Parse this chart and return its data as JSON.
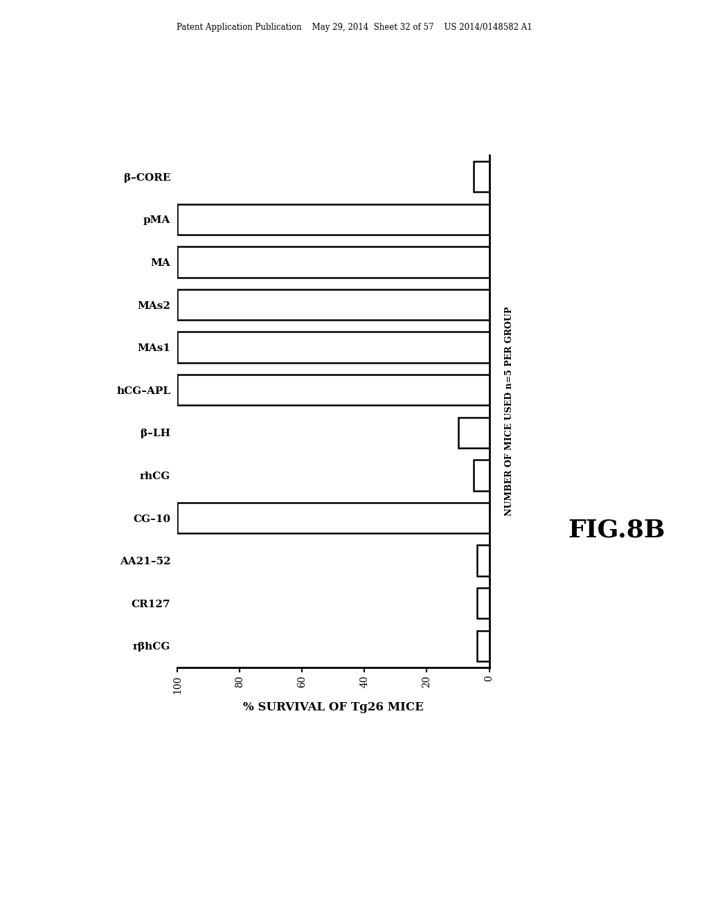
{
  "categories_top_to_bottom": [
    "β–CORE",
    "pMA",
    "MA",
    "MAs2",
    "MAs1",
    "hCG–APL",
    "β–LH",
    "rhCG",
    "CG–10",
    "AA21–52",
    "CR127",
    "rβhCG"
  ],
  "values_top_to_bottom": [
    5,
    100,
    100,
    100,
    100,
    100,
    10,
    5,
    100,
    4,
    4,
    4
  ],
  "bar_color": "#ffffff",
  "bar_edge_color": "#000000",
  "bar_linewidth": 1.8,
  "xlabel": "% SURVIVAL OF Tg26 MICE",
  "ylabel": "NUMBER OF MICE USED n=5 PER GROUP",
  "background_color": "#ffffff",
  "fig_label": "FIG.8B",
  "axis_fontsize": 11,
  "tick_fontsize": 10,
  "label_fontsize": 12,
  "bar_height": 0.72,
  "header_text": "Patent Application Publication    May 29, 2014  Sheet 32 of 57    US 2014/0148582 A1",
  "xticks": [
    100,
    80,
    60,
    40,
    20,
    0
  ],
  "spine_linewidth": 2.0
}
